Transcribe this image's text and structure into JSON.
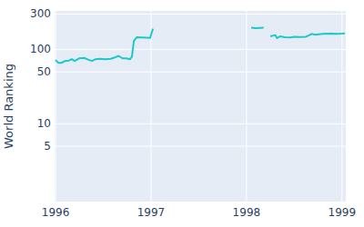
{
  "chart_data": {
    "type": "line",
    "y_label": "World Ranking",
    "x": [
      1996.0,
      1996.03,
      1996.06,
      1996.1,
      1996.14,
      1996.17,
      1996.2,
      1996.25,
      1996.3,
      1996.34,
      1996.38,
      1996.42,
      1996.46,
      1996.52,
      1996.58,
      1996.62,
      1996.66,
      1996.7,
      1996.74,
      1996.78,
      1996.8,
      1996.82,
      1996.85,
      1996.9,
      1996.95,
      1996.99,
      1997.02,
      1997.5,
      1998.05,
      1998.1,
      1998.14,
      1998.18,
      1998.21,
      1998.25,
      1998.3,
      1998.32,
      1998.35,
      1998.4,
      1998.46,
      1998.5,
      1998.55,
      1998.62,
      1998.66,
      1998.68,
      1998.72,
      1998.8,
      1998.88,
      1998.95,
      1999.0,
      1999.03
    ],
    "series": [
      {
        "name": "World Ranking",
        "color": "#1cc8c8",
        "values": [
          72,
          66,
          66,
          70,
          71,
          74,
          70,
          76,
          77,
          73,
          70,
          74,
          75,
          74,
          75,
          78,
          82,
          76,
          76,
          74,
          80,
          130,
          146,
          145,
          144,
          143,
          190,
          null,
          196,
          194,
          195,
          196,
          null,
          150,
          156,
          142,
          150,
          146,
          145,
          148,
          147,
          148,
          156,
          162,
          158,
          162,
          163,
          162,
          163,
          165
        ]
      }
    ],
    "xlim": [
      1995.99,
      1999.04
    ],
    "xticks": [
      1996,
      1997,
      1998,
      1999
    ],
    "ylim": [
      0.9,
      330
    ],
    "yticks": [
      5,
      10,
      50,
      100,
      300
    ],
    "log": "y",
    "grid": true
  }
}
